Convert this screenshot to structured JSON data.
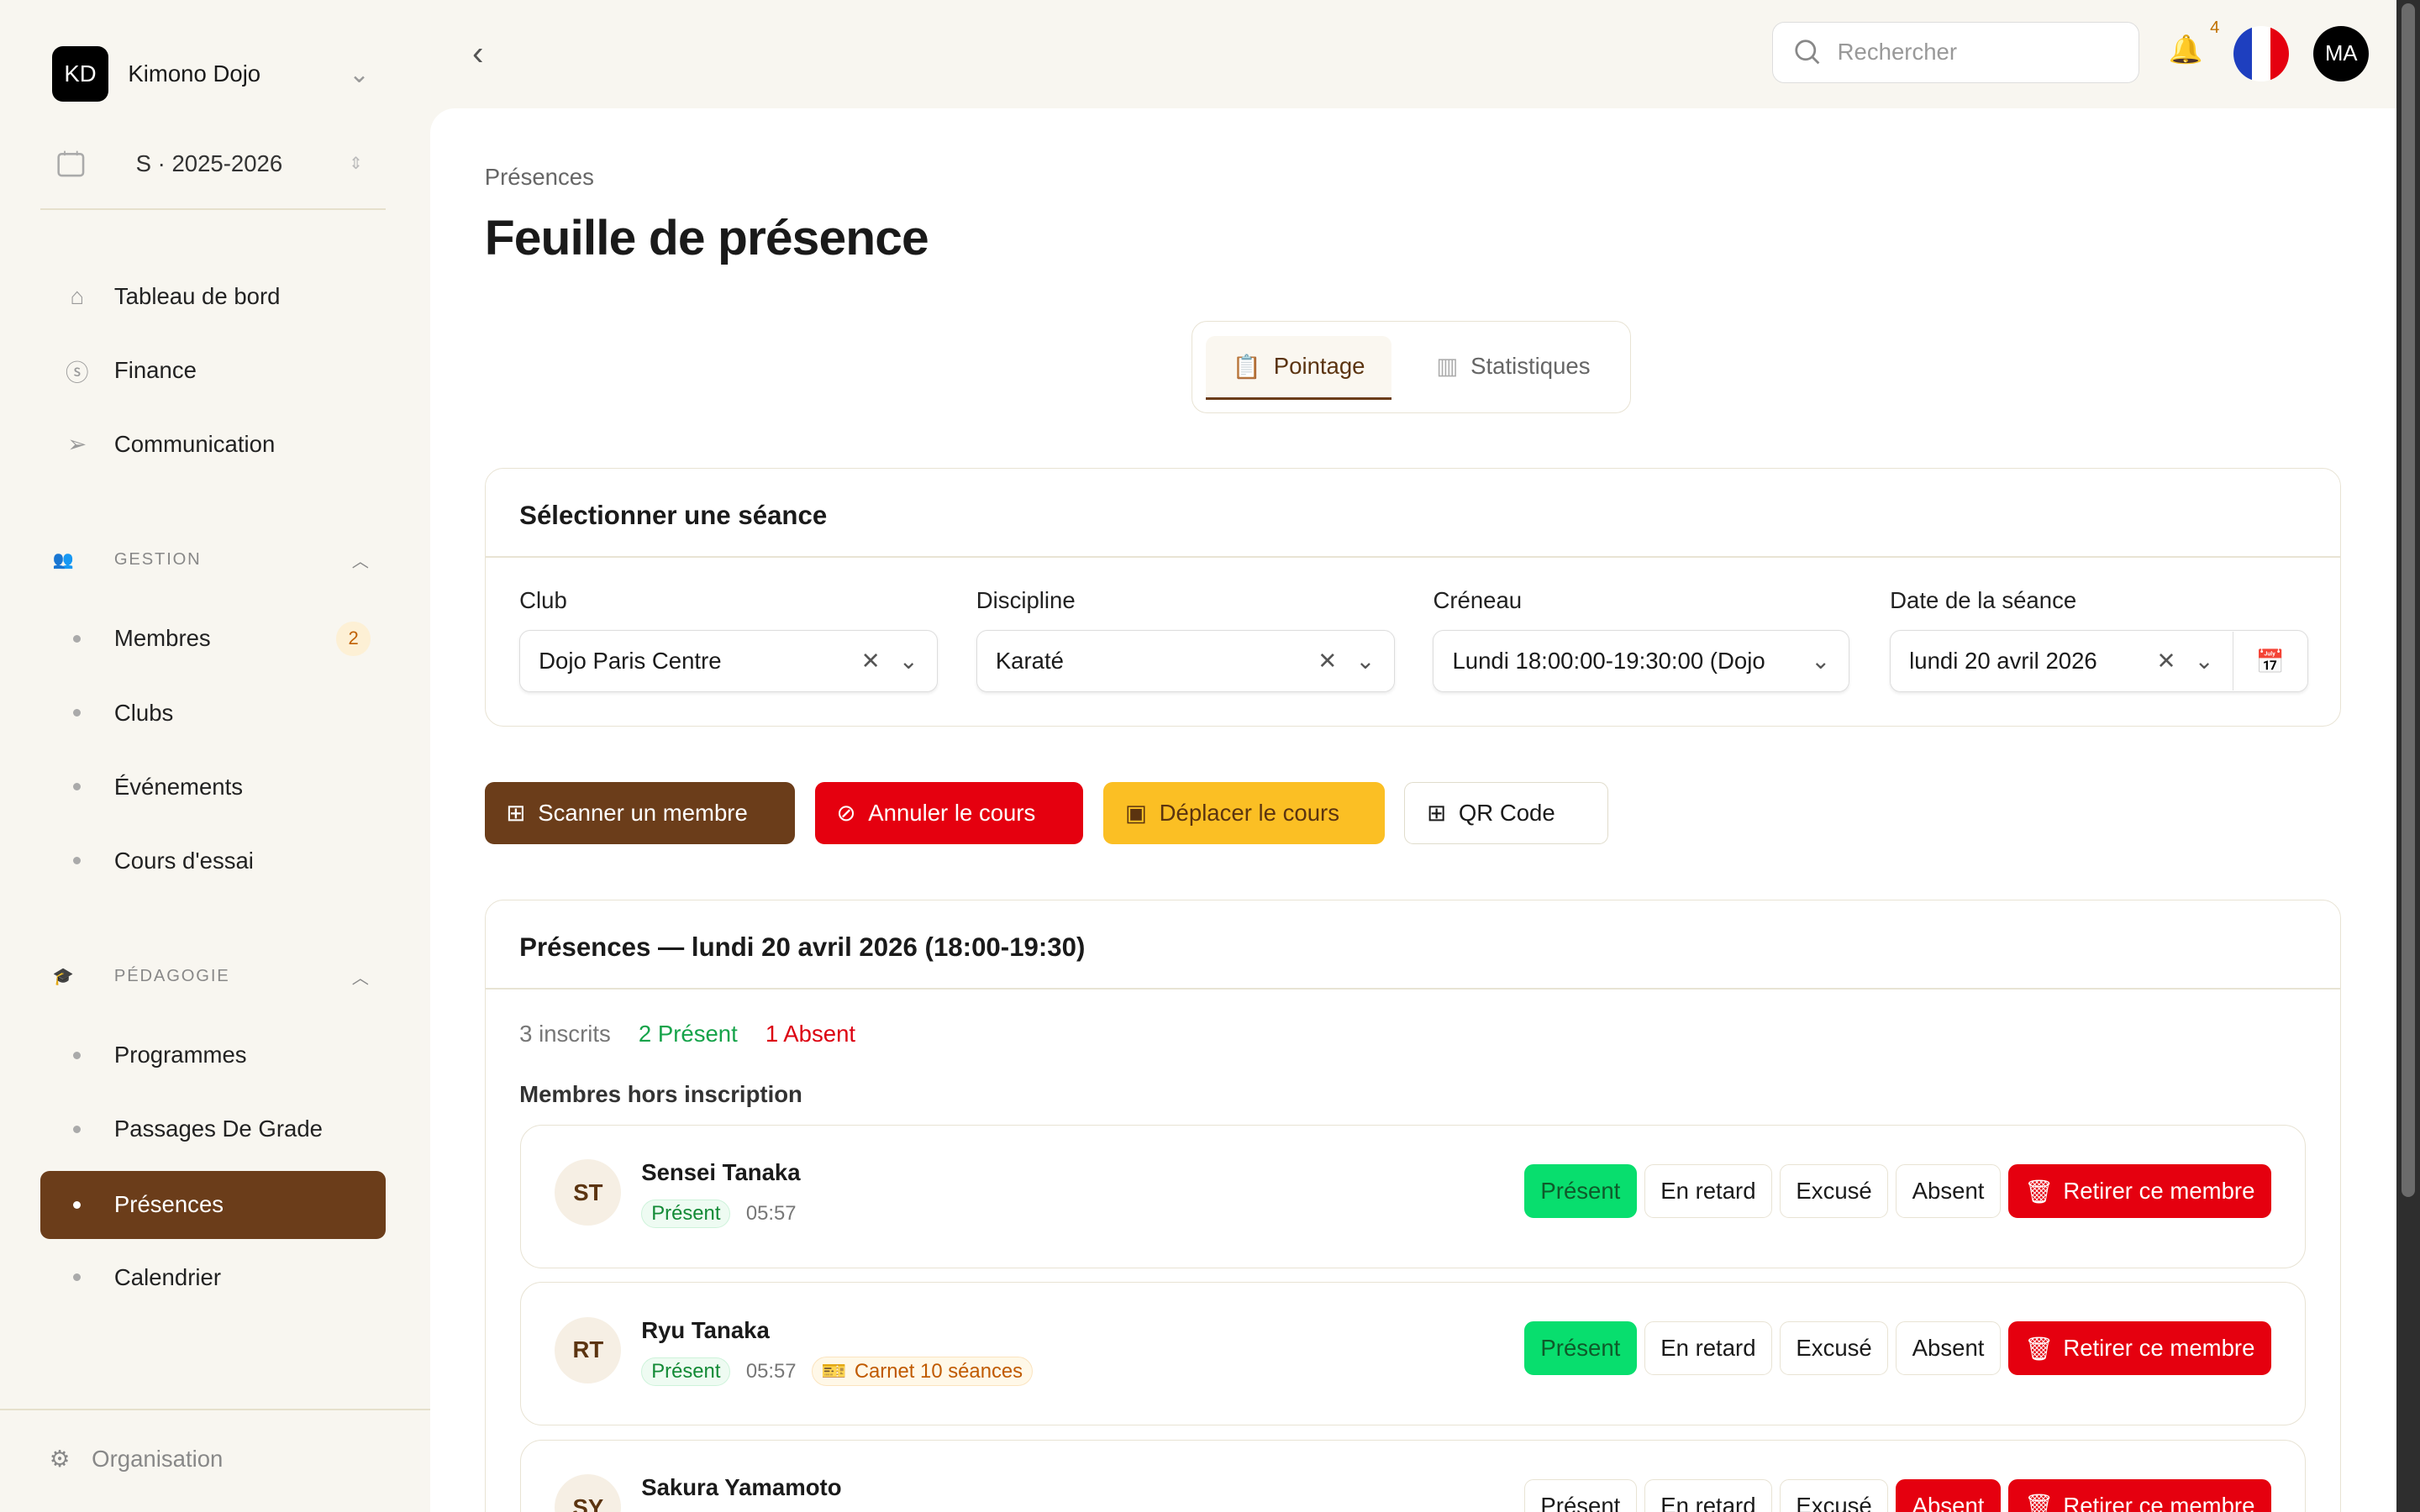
{
  "org": {
    "initials": "KD",
    "name": "Kimono Dojo",
    "season": "S · 2025-2026"
  },
  "nav": {
    "dashboard": "Tableau de bord",
    "finance": "Finance",
    "communication": "Communication",
    "gestion": "GESTION",
    "gestion_items": [
      {
        "label": "Membres",
        "badge": "2"
      },
      {
        "label": "Clubs"
      },
      {
        "label": "Événements"
      },
      {
        "label": "Cours d'essai"
      }
    ],
    "pedagogie": "PÉDAGOGIE",
    "pedagogie_items": [
      {
        "label": "Programmes"
      },
      {
        "label": "Passages De Grade"
      },
      {
        "label": "Présences"
      },
      {
        "label": "Calendrier"
      }
    ],
    "organisation": "Organisation"
  },
  "header": {
    "search_placeholder": "Rechercher",
    "notifications": "4",
    "user_initials": "MA"
  },
  "page": {
    "breadcrumb": "Présences",
    "title": "Feuille de présence",
    "tabs": [
      "Pointage",
      "Statistiques"
    ]
  },
  "session": {
    "title": "Sélectionner une séance",
    "fields": [
      {
        "label": "Club",
        "value": "Dojo Paris Centre"
      },
      {
        "label": "Discipline",
        "value": "Karaté"
      },
      {
        "label": "Créneau",
        "value": "Lundi 18:00:00-19:30:00 (Dojo"
      },
      {
        "label": "Date de la séance",
        "value": "lundi 20 avril 2026"
      }
    ]
  },
  "actions": {
    "scan": "Scanner un membre",
    "cancel": "Annuler le cours",
    "move": "Déplacer le cours",
    "qr": "QR Code"
  },
  "attendance": {
    "title": "Présences — lundi 20 avril 2026 (18:00-19:30)",
    "inscrits": "3 inscrits",
    "present": "2 Présent",
    "absent": "1 Absent",
    "subtitle": "Membres hors inscription",
    "status_buttons": [
      "Présent",
      "En retard",
      "Excusé",
      "Absent"
    ],
    "remove": "Retirer ce membre",
    "members": [
      {
        "initials": "ST",
        "name": "Sensei Tanaka",
        "status": "Présent",
        "time": "05:57",
        "active": "Présent"
      },
      {
        "initials": "RT",
        "name": "Ryu Tanaka",
        "status": "Présent",
        "time": "05:57",
        "carnet": "Carnet 10 séances",
        "active": "Présent"
      },
      {
        "initials": "SY",
        "name": "Sakura Yamamoto",
        "active": "Absent"
      }
    ]
  },
  "colors": {
    "brand": "#6b3d1a",
    "present": "#08de6e",
    "absent": "#e5000f",
    "move": "#fbbf24"
  }
}
